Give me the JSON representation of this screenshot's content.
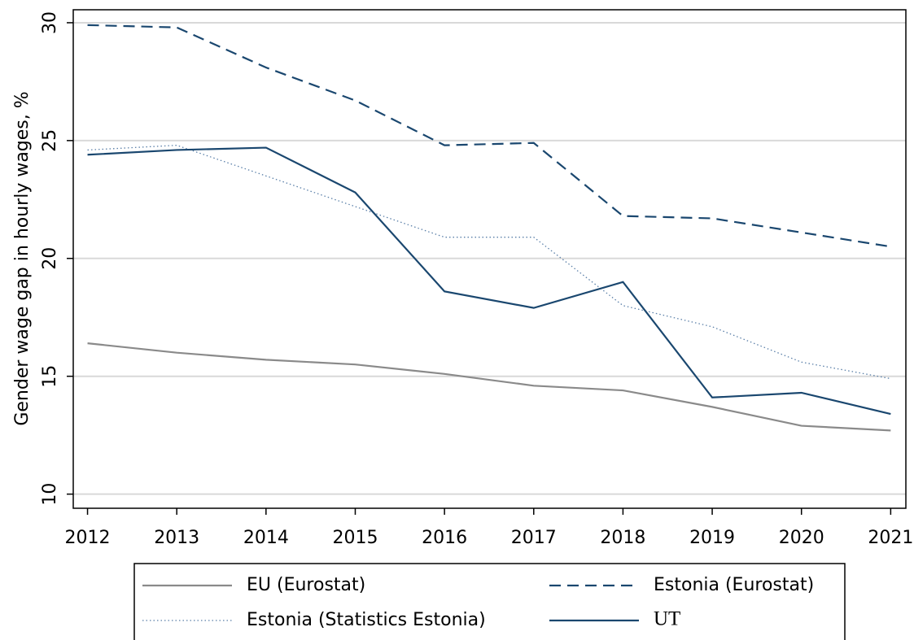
{
  "chart_data": {
    "type": "line",
    "y_label": "Gender wage gap in hourly wages, %",
    "x": [
      2012,
      2013,
      2014,
      2015,
      2016,
      2017,
      2018,
      2019,
      2020,
      2021
    ],
    "xlim": [
      2011.84,
      2021.17
    ],
    "xticks": [
      2012,
      2013,
      2014,
      2015,
      2016,
      2017,
      2018,
      2019,
      2020,
      2021
    ],
    "ylim": [
      9.4,
      30.55
    ],
    "yticks": [
      10,
      15,
      20,
      25,
      30
    ],
    "grid": true,
    "legend": "bottom",
    "series": [
      {
        "name": "EU (Eurostat)",
        "color": "#8a8a8a",
        "style": "solid",
        "values": [
          16.4,
          16.0,
          15.7,
          15.5,
          15.1,
          14.6,
          14.4,
          13.7,
          12.9,
          12.7
        ]
      },
      {
        "name": "Estonia (Eurostat)",
        "color": "#1a476f",
        "style": "dashed",
        "values": [
          29.9,
          29.8,
          28.1,
          26.7,
          24.8,
          24.9,
          21.8,
          21.7,
          21.1,
          20.5
        ]
      },
      {
        "name": "Estonia (Statistics Estonia)",
        "color": "#5a7fa8",
        "style": "dotted",
        "values": [
          24.6,
          24.8,
          23.5,
          22.2,
          20.9,
          20.9,
          18.0,
          17.1,
          15.6,
          14.9
        ]
      },
      {
        "name": "UT",
        "color": "#1a476f",
        "style": "solid",
        "values": [
          24.4,
          24.6,
          24.7,
          22.8,
          18.6,
          17.9,
          19.0,
          14.1,
          14.3,
          13.4
        ]
      }
    ]
  }
}
